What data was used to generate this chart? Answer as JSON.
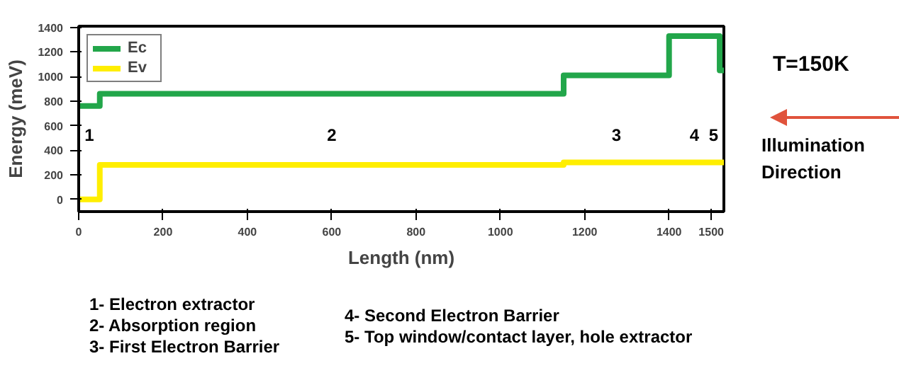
{
  "chart_data": {
    "type": "step",
    "xlabel": "Length (nm)",
    "ylabel": "Energy (meV)",
    "xlim": [
      0,
      1530
    ],
    "ylim": [
      -100,
      1410
    ],
    "xticks": [
      0,
      200,
      400,
      600,
      800,
      1000,
      1200,
      1400,
      1500
    ],
    "yticks": [
      0,
      200,
      400,
      600,
      800,
      1000,
      1200,
      1400
    ],
    "grid": false,
    "legend": "top left",
    "line_style": "solid",
    "marker": "none",
    "series": [
      {
        "name": "Ec",
        "color": "#22a64a",
        "x": [
          0,
          50,
          1150,
          1400,
          1520,
          1530
        ],
        "values": [
          760,
          860,
          1010,
          1330,
          1050,
          1050
        ]
      },
      {
        "name": "Ev",
        "color": "#ffee00",
        "x": [
          0,
          50,
          1150,
          1530
        ],
        "values": [
          0,
          280,
          300,
          300
        ]
      }
    ],
    "annotations": [
      "1",
      "2",
      "3",
      "4",
      "5",
      "T=150K",
      "Illumination Direction",
      "1- Electron extractor",
      "2- Absorption region",
      "3- First Electron Barrier",
      "4- Second Electron Barrier",
      "5- Top window/contact layer, hole extractor"
    ]
  }
}
